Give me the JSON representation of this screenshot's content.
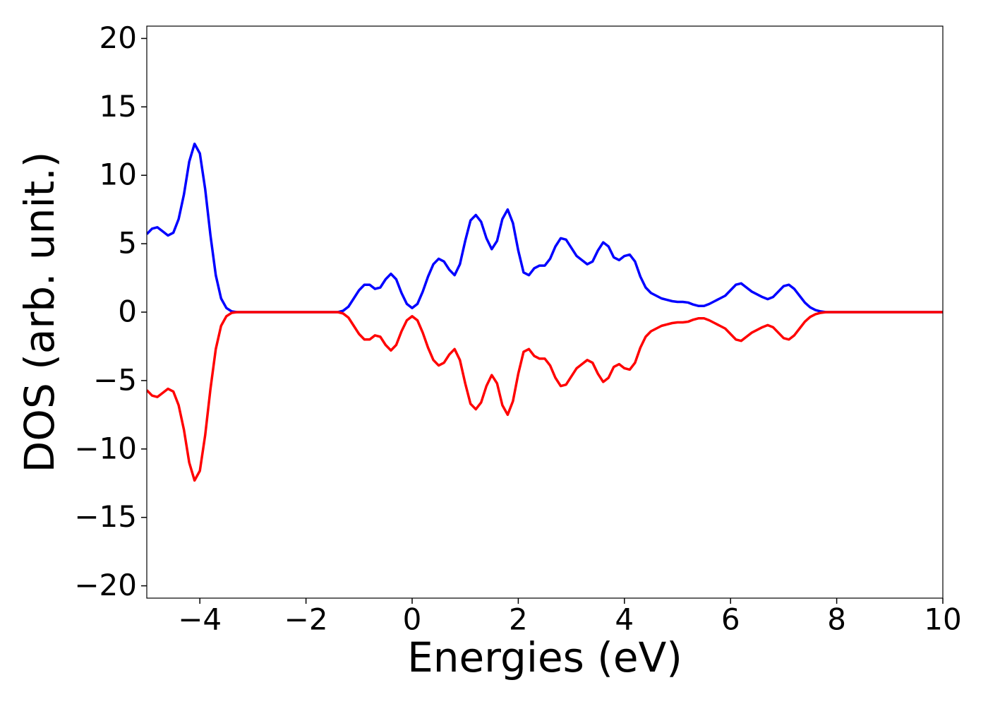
{
  "chart_data": {
    "type": "line",
    "xlabel": "Energies (eV)",
    "ylabel": "DOS (arb. unit.)",
    "xlim": [
      -5,
      10
    ],
    "ylim": [
      -20.9,
      20.9
    ],
    "xticks": [
      {
        "value": -4,
        "label": "−4"
      },
      {
        "value": -2,
        "label": "−2"
      },
      0,
      2,
      4,
      6,
      8,
      10
    ],
    "yticks": [
      {
        "value": -20,
        "label": "−20"
      },
      {
        "value": -15,
        "label": "−15"
      },
      {
        "value": -10,
        "label": "−10"
      },
      {
        "value": -5,
        "label": "−5"
      },
      0,
      5,
      10,
      15,
      20
    ],
    "grid": false,
    "x": [
      -5.0,
      -4.9,
      -4.8,
      -4.7,
      -4.6,
      -4.5,
      -4.4,
      -4.3,
      -4.2,
      -4.1,
      -4.0,
      -3.9,
      -3.8,
      -3.7,
      -3.6,
      -3.5,
      -3.4,
      -3.3,
      -3.2,
      -3.1,
      -3.0,
      -2.9,
      -2.8,
      -2.7,
      -2.6,
      -2.5,
      -2.4,
      -2.3,
      -2.2,
      -2.1,
      -2.0,
      -1.9,
      -1.8,
      -1.7,
      -1.6,
      -1.5,
      -1.4,
      -1.3,
      -1.2,
      -1.1,
      -1.0,
      -0.9,
      -0.8,
      -0.7,
      -0.6,
      -0.5,
      -0.4,
      -0.3,
      -0.2,
      -0.1,
      0.0,
      0.1,
      0.2,
      0.3,
      0.4,
      0.5,
      0.6,
      0.7,
      0.8,
      0.9,
      1.0,
      1.1,
      1.2,
      1.3,
      1.4,
      1.5,
      1.6,
      1.7,
      1.8,
      1.9,
      2.0,
      2.1,
      2.2,
      2.3,
      2.4,
      2.5,
      2.6,
      2.7,
      2.8,
      2.9,
      3.0,
      3.1,
      3.2,
      3.3,
      3.4,
      3.5,
      3.6,
      3.7,
      3.8,
      3.9,
      4.0,
      4.1,
      4.2,
      4.3,
      4.4,
      4.5,
      4.6,
      4.7,
      4.8,
      4.9,
      5.0,
      5.1,
      5.2,
      5.3,
      5.4,
      5.5,
      5.6,
      5.7,
      5.8,
      5.9,
      6.0,
      6.1,
      6.2,
      6.3,
      6.4,
      6.5,
      6.6,
      6.7,
      6.8,
      6.9,
      7.0,
      7.1,
      7.2,
      7.3,
      7.4,
      7.5,
      7.6,
      7.7,
      7.8,
      7.9,
      8.0,
      8.1,
      8.2,
      8.3,
      8.4,
      8.5,
      8.6,
      8.7,
      8.8,
      8.9,
      9.0,
      9.1,
      9.2,
      9.3,
      9.4,
      9.5,
      9.6,
      9.7,
      9.8,
      9.9,
      10.0
    ],
    "series": [
      {
        "color": "#0000ff",
        "values": [
          5.7,
          6.1,
          6.2,
          5.9,
          5.6,
          5.8,
          6.8,
          8.6,
          11.0,
          12.3,
          11.6,
          9.0,
          5.6,
          2.7,
          1.0,
          0.3,
          0.05,
          0,
          0,
          0,
          0,
          0,
          0,
          0,
          0,
          0,
          0,
          0,
          0,
          0,
          0,
          0,
          0,
          0,
          0,
          0,
          0,
          0.1,
          0.4,
          1.0,
          1.6,
          2.0,
          2.0,
          1.7,
          1.8,
          2.4,
          2.8,
          2.4,
          1.4,
          0.6,
          0.3,
          0.6,
          1.5,
          2.6,
          3.5,
          3.9,
          3.7,
          3.1,
          2.7,
          3.5,
          5.2,
          6.7,
          7.1,
          6.6,
          5.4,
          4.6,
          5.2,
          6.8,
          7.5,
          6.5,
          4.5,
          2.9,
          2.7,
          3.2,
          3.4,
          3.4,
          3.9,
          4.8,
          5.4,
          5.3,
          4.7,
          4.1,
          3.8,
          3.5,
          3.7,
          4.5,
          5.1,
          4.8,
          4.0,
          3.8,
          4.1,
          4.2,
          3.7,
          2.6,
          1.8,
          1.4,
          1.2,
          1.0,
          0.9,
          0.8,
          0.75,
          0.75,
          0.7,
          0.55,
          0.45,
          0.45,
          0.6,
          0.8,
          1.0,
          1.2,
          1.6,
          2.0,
          2.1,
          1.8,
          1.5,
          1.3,
          1.1,
          0.95,
          1.1,
          1.5,
          1.9,
          2.0,
          1.7,
          1.2,
          0.7,
          0.35,
          0.15,
          0.05,
          0,
          0,
          0,
          0,
          0,
          0,
          0,
          0,
          0,
          0,
          0,
          0,
          0,
          0,
          0,
          0,
          0,
          0,
          0,
          0,
          0,
          0,
          0
        ]
      },
      {
        "color": "#ff0000",
        "values": [
          -5.7,
          -6.1,
          -6.2,
          -5.9,
          -5.6,
          -5.8,
          -6.8,
          -8.6,
          -11.0,
          -12.3,
          -11.6,
          -9.0,
          -5.6,
          -2.7,
          -1.0,
          -0.3,
          -0.05,
          0,
          0,
          0,
          0,
          0,
          0,
          0,
          0,
          0,
          0,
          0,
          0,
          0,
          0,
          0,
          0,
          0,
          0,
          0,
          0,
          -0.1,
          -0.4,
          -1.0,
          -1.6,
          -2.0,
          -2.0,
          -1.7,
          -1.8,
          -2.4,
          -2.8,
          -2.4,
          -1.4,
          -0.6,
          -0.3,
          -0.6,
          -1.5,
          -2.6,
          -3.5,
          -3.9,
          -3.7,
          -3.1,
          -2.7,
          -3.5,
          -5.2,
          -6.7,
          -7.1,
          -6.6,
          -5.4,
          -4.6,
          -5.2,
          -6.8,
          -7.5,
          -6.5,
          -4.5,
          -2.9,
          -2.7,
          -3.2,
          -3.4,
          -3.4,
          -3.9,
          -4.8,
          -5.4,
          -5.3,
          -4.7,
          -4.1,
          -3.8,
          -3.5,
          -3.7,
          -4.5,
          -5.1,
          -4.8,
          -4.0,
          -3.8,
          -4.1,
          -4.2,
          -3.7,
          -2.6,
          -1.8,
          -1.4,
          -1.2,
          -1.0,
          -0.9,
          -0.8,
          -0.75,
          -0.75,
          -0.7,
          -0.55,
          -0.45,
          -0.45,
          -0.6,
          -0.8,
          -1.0,
          -1.2,
          -1.6,
          -2.0,
          -2.1,
          -1.8,
          -1.5,
          -1.3,
          -1.1,
          -0.95,
          -1.1,
          -1.5,
          -1.9,
          -2.0,
          -1.7,
          -1.2,
          -0.7,
          -0.35,
          -0.15,
          -0.05,
          0,
          0,
          0,
          0,
          0,
          0,
          0,
          0,
          0,
          0,
          0,
          0,
          0,
          0,
          0,
          0,
          0,
          0,
          0,
          0,
          0,
          0,
          0
        ]
      }
    ]
  }
}
